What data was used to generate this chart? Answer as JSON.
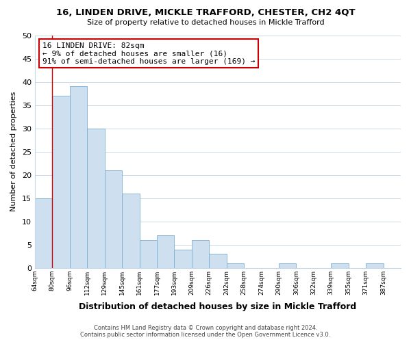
{
  "title": "16, LINDEN DRIVE, MICKLE TRAFFORD, CHESTER, CH2 4QT",
  "subtitle": "Size of property relative to detached houses in Mickle Trafford",
  "xlabel": "Distribution of detached houses by size in Mickle Trafford",
  "ylabel": "Number of detached properties",
  "bin_labels": [
    "64sqm",
    "80sqm",
    "96sqm",
    "112sqm",
    "129sqm",
    "145sqm",
    "161sqm",
    "177sqm",
    "193sqm",
    "209sqm",
    "226sqm",
    "242sqm",
    "258sqm",
    "274sqm",
    "290sqm",
    "306sqm",
    "322sqm",
    "339sqm",
    "355sqm",
    "371sqm",
    "387sqm"
  ],
  "bar_heights": [
    15,
    37,
    39,
    30,
    21,
    16,
    6,
    7,
    4,
    6,
    3,
    1,
    0,
    0,
    1,
    0,
    0,
    1,
    0,
    1,
    0
  ],
  "bar_color": "#cee0f0",
  "bar_edge_color": "#7aaed0",
  "grid_color": "#c8d8e8",
  "vline_color": "#cc0000",
  "annotation_title": "16 LINDEN DRIVE: 82sqm",
  "annotation_line1": "← 9% of detached houses are smaller (16)",
  "annotation_line2": "91% of semi-detached houses are larger (169) →",
  "annotation_box_color": "#ffffff",
  "annotation_box_edge": "#cc0000",
  "footer_line1": "Contains HM Land Registry data © Crown copyright and database right 2024.",
  "footer_line2": "Contains public sector information licensed under the Open Government Licence v3.0.",
  "ylim": [
    0,
    50
  ],
  "background_color": "#ffffff"
}
